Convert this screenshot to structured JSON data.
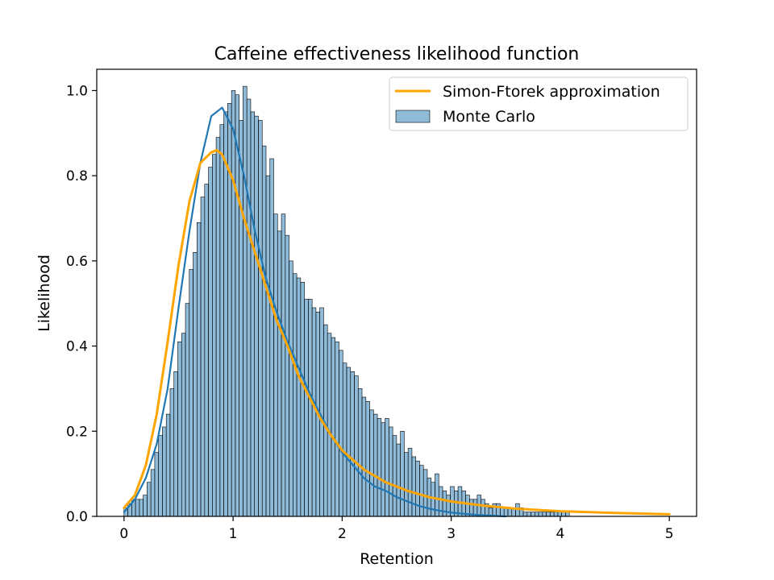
{
  "chart_data": {
    "type": "bar",
    "title": "Caffeine effectiveness likelihood function",
    "xlabel": "Retention",
    "ylabel": "Likelihood",
    "xlim": [
      -0.25,
      5.25
    ],
    "ylim": [
      0,
      1.05
    ],
    "xticks": [
      0,
      1,
      2,
      3,
      4,
      5
    ],
    "xtick_labels": [
      "0",
      "1",
      "2",
      "3",
      "4",
      "5"
    ],
    "yticks": [
      0,
      0.2,
      0.4,
      0.6,
      0.8,
      1.0
    ],
    "ytick_labels": [
      "0.0",
      "0.2",
      "0.4",
      "0.6",
      "0.8",
      "1.0"
    ],
    "grid": false,
    "legend_position": "top-right",
    "legend": [
      {
        "label": "Simon-Ftorek approximation",
        "kind": "line",
        "color": "#ffa500"
      },
      {
        "label": "Monte Carlo",
        "kind": "bar",
        "color": "#1f77b4"
      }
    ],
    "histogram": {
      "name": "Monte Carlo",
      "color": "#1f77b4",
      "bin_start": 0.0,
      "bin_width": 0.0352,
      "heights": [
        0.02,
        0.03,
        0.04,
        0.04,
        0.04,
        0.05,
        0.08,
        0.11,
        0.15,
        0.19,
        0.21,
        0.24,
        0.3,
        0.34,
        0.41,
        0.43,
        0.5,
        0.58,
        0.62,
        0.69,
        0.75,
        0.78,
        0.82,
        0.85,
        0.89,
        0.92,
        0.95,
        0.97,
        1.0,
        0.99,
        0.93,
        1.01,
        0.98,
        0.95,
        0.94,
        0.93,
        0.87,
        0.8,
        0.84,
        0.71,
        0.67,
        0.71,
        0.66,
        0.6,
        0.57,
        0.56,
        0.55,
        0.51,
        0.51,
        0.49,
        0.48,
        0.49,
        0.45,
        0.43,
        0.42,
        0.41,
        0.39,
        0.36,
        0.35,
        0.34,
        0.33,
        0.3,
        0.28,
        0.27,
        0.25,
        0.24,
        0.23,
        0.22,
        0.23,
        0.21,
        0.19,
        0.17,
        0.2,
        0.15,
        0.16,
        0.14,
        0.13,
        0.12,
        0.11,
        0.09,
        0.08,
        0.1,
        0.07,
        0.06,
        0.05,
        0.07,
        0.06,
        0.07,
        0.06,
        0.05,
        0.04,
        0.04,
        0.05,
        0.04,
        0.03,
        0.02,
        0.03,
        0.03,
        0.02,
        0.02,
        0.02,
        0.02,
        0.03,
        0.02,
        0.01,
        0.01,
        0.01,
        0.01,
        0.01,
        0.01,
        0.01,
        0.01,
        0.01,
        0.01,
        0.01,
        0.01
      ]
    },
    "series": [
      {
        "name": "Monte Carlo",
        "kind": "kde",
        "color": "#1f77b4",
        "x": [
          0.0,
          0.1,
          0.2,
          0.3,
          0.4,
          0.5,
          0.6,
          0.7,
          0.8,
          0.9,
          1.0,
          1.1,
          1.2,
          1.3,
          1.4,
          1.5,
          1.6,
          1.7,
          1.8,
          1.9,
          2.0,
          2.1,
          2.2,
          2.3,
          2.4,
          2.5,
          2.6,
          2.7,
          2.8,
          2.9,
          3.0,
          3.2,
          3.5
        ],
        "y": [
          0.01,
          0.04,
          0.09,
          0.17,
          0.3,
          0.49,
          0.67,
          0.83,
          0.94,
          0.96,
          0.91,
          0.8,
          0.67,
          0.56,
          0.48,
          0.41,
          0.35,
          0.29,
          0.24,
          0.19,
          0.15,
          0.12,
          0.09,
          0.07,
          0.06,
          0.045,
          0.035,
          0.025,
          0.018,
          0.013,
          0.009,
          0.004,
          0.0
        ]
      },
      {
        "name": "Simon-Ftorek approximation",
        "kind": "line",
        "color": "#ffa500",
        "x": [
          0.0,
          0.1,
          0.2,
          0.3,
          0.4,
          0.5,
          0.6,
          0.7,
          0.8,
          0.85,
          0.9,
          1.0,
          1.1,
          1.2,
          1.3,
          1.4,
          1.5,
          1.6,
          1.7,
          1.8,
          1.9,
          2.0,
          2.2,
          2.4,
          2.6,
          2.8,
          3.0,
          3.3,
          3.6,
          4.0,
          4.5,
          5.0
        ],
        "y": [
          0.02,
          0.05,
          0.12,
          0.24,
          0.41,
          0.59,
          0.74,
          0.83,
          0.855,
          0.86,
          0.85,
          0.79,
          0.7,
          0.62,
          0.54,
          0.46,
          0.4,
          0.33,
          0.28,
          0.23,
          0.19,
          0.155,
          0.11,
          0.08,
          0.06,
          0.045,
          0.035,
          0.025,
          0.018,
          0.012,
          0.008,
          0.005
        ]
      }
    ]
  }
}
